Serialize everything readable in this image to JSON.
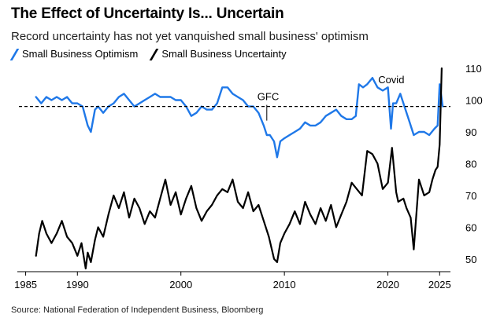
{
  "title": "The Effect of Uncertainty Is... Uncertain",
  "subtitle": "Record uncertainty has not yet vanquished small business' optimism",
  "source": "Source: National Federation of Independent Business, Bloomberg",
  "colors": {
    "optimism": "#1f78e8",
    "uncertainty": "#000000",
    "reference": "#000000"
  },
  "chart_data": {
    "type": "line",
    "xlim": [
      1984.5,
      2026.5
    ],
    "ylim": [
      46,
      111
    ],
    "x_ticks": [
      "1985",
      "1990",
      "2000",
      "2010",
      "2020",
      "2025"
    ],
    "x_tick_values": [
      1985,
      1990,
      2000,
      2010,
      2020,
      2025
    ],
    "y_ticks": [
      "50",
      "60",
      "70",
      "80",
      "90",
      "100",
      "110"
    ],
    "y_tick_values": [
      50,
      60,
      70,
      80,
      90,
      100,
      110
    ],
    "y_axis_side": "right",
    "reference_line": {
      "value": 98,
      "style": "dashed"
    },
    "annotations": [
      {
        "label": "GFC",
        "x": 2008.3,
        "y": 98
      },
      {
        "label": "Covid",
        "x": 2020.2,
        "y": 106
      }
    ],
    "legend": {
      "placement": "top-left"
    },
    "series": [
      {
        "name": "Small Business Optimism",
        "color": "#1f78e8",
        "x": [
          1986.0,
          1986.5,
          1987.0,
          1987.5,
          1988.0,
          1988.5,
          1989.0,
          1989.5,
          1990.0,
          1990.5,
          1991.0,
          1991.3,
          1991.7,
          1992.0,
          1992.5,
          1993.0,
          1993.5,
          1994.0,
          1994.5,
          1995.0,
          1995.5,
          1996.0,
          1996.5,
          1997.0,
          1997.5,
          1998.0,
          1998.5,
          1999.0,
          1999.5,
          2000.0,
          2000.5,
          2001.0,
          2001.5,
          2002.0,
          2002.5,
          2003.0,
          2003.5,
          2004.0,
          2004.5,
          2005.0,
          2005.5,
          2006.0,
          2006.5,
          2007.0,
          2007.5,
          2008.0,
          2008.3,
          2008.6,
          2009.0,
          2009.3,
          2009.6,
          2010.0,
          2010.5,
          2011.0,
          2011.5,
          2012.0,
          2012.5,
          2013.0,
          2013.5,
          2014.0,
          2014.5,
          2015.0,
          2015.5,
          2016.0,
          2016.5,
          2016.9,
          2017.2,
          2017.6,
          2018.0,
          2018.5,
          2019.0,
          2019.5,
          2020.0,
          2020.3,
          2020.5,
          2020.8,
          2021.2,
          2021.6,
          2022.0,
          2022.5,
          2023.0,
          2023.5,
          2024.0,
          2024.5,
          2024.8,
          2025.0,
          2025.3
        ],
        "y": [
          101,
          99,
          101,
          100,
          101,
          100,
          101,
          99,
          99,
          98,
          92,
          90,
          97,
          98,
          96,
          98,
          99,
          101,
          102,
          100,
          98,
          99,
          100,
          101,
          102,
          101,
          101,
          101,
          100,
          100,
          98,
          95,
          96,
          98,
          97,
          97,
          99,
          104,
          104,
          102,
          101,
          100,
          98,
          98,
          96,
          92,
          89,
          89,
          87,
          82,
          87,
          88,
          89,
          90,
          91,
          93,
          92,
          92,
          93,
          95,
          96,
          97,
          95,
          94,
          94,
          95,
          105,
          104,
          105,
          107,
          104,
          103,
          104,
          91,
          99,
          99,
          102,
          98,
          94,
          89,
          90,
          90,
          89,
          91,
          92,
          105,
          98
        ]
      },
      {
        "name": "Small Business Uncertainty",
        "color": "#000000",
        "x": [
          1986.0,
          1986.3,
          1986.6,
          1987.0,
          1987.5,
          1988.0,
          1988.5,
          1989.0,
          1989.5,
          1990.0,
          1990.4,
          1990.8,
          1991.0,
          1991.3,
          1991.7,
          1992.0,
          1992.5,
          1993.0,
          1993.5,
          1994.0,
          1994.5,
          1995.0,
          1995.5,
          1996.0,
          1996.5,
          1997.0,
          1997.5,
          1998.0,
          1998.5,
          1999.0,
          1999.5,
          2000.0,
          2000.5,
          2001.0,
          2001.5,
          2002.0,
          2002.5,
          2003.0,
          2003.5,
          2004.0,
          2004.5,
          2005.0,
          2005.5,
          2006.0,
          2006.5,
          2007.0,
          2007.5,
          2008.0,
          2008.5,
          2009.0,
          2009.3,
          2009.6,
          2010.0,
          2010.5,
          2011.0,
          2011.5,
          2012.0,
          2012.5,
          2013.0,
          2013.5,
          2014.0,
          2014.5,
          2015.0,
          2015.5,
          2016.0,
          2016.5,
          2017.0,
          2017.5,
          2018.0,
          2018.5,
          2019.0,
          2019.5,
          2020.0,
          2020.4,
          2020.8,
          2021.0,
          2021.5,
          2021.8,
          2022.2,
          2022.5,
          2023.0,
          2023.5,
          2024.0,
          2024.3,
          2024.6,
          2024.8,
          2025.0,
          2025.2
        ],
        "y": [
          51,
          58,
          62,
          58,
          55,
          58,
          62,
          57,
          55,
          51,
          55,
          47,
          52,
          49,
          56,
          60,
          57,
          64,
          70,
          66,
          71,
          63,
          69,
          66,
          61,
          65,
          63,
          69,
          75,
          67,
          71,
          64,
          69,
          73,
          66,
          62,
          65,
          67,
          70,
          72,
          71,
          75,
          68,
          66,
          71,
          65,
          67,
          62,
          57,
          50,
          49,
          55,
          58,
          61,
          65,
          61,
          68,
          64,
          61,
          66,
          62,
          67,
          60,
          64,
          68,
          74,
          72,
          70,
          84,
          83,
          80,
          72,
          74,
          85,
          71,
          68,
          69,
          66,
          63,
          53,
          75,
          70,
          71,
          75,
          78,
          79,
          86,
          110
        ]
      }
    ]
  }
}
